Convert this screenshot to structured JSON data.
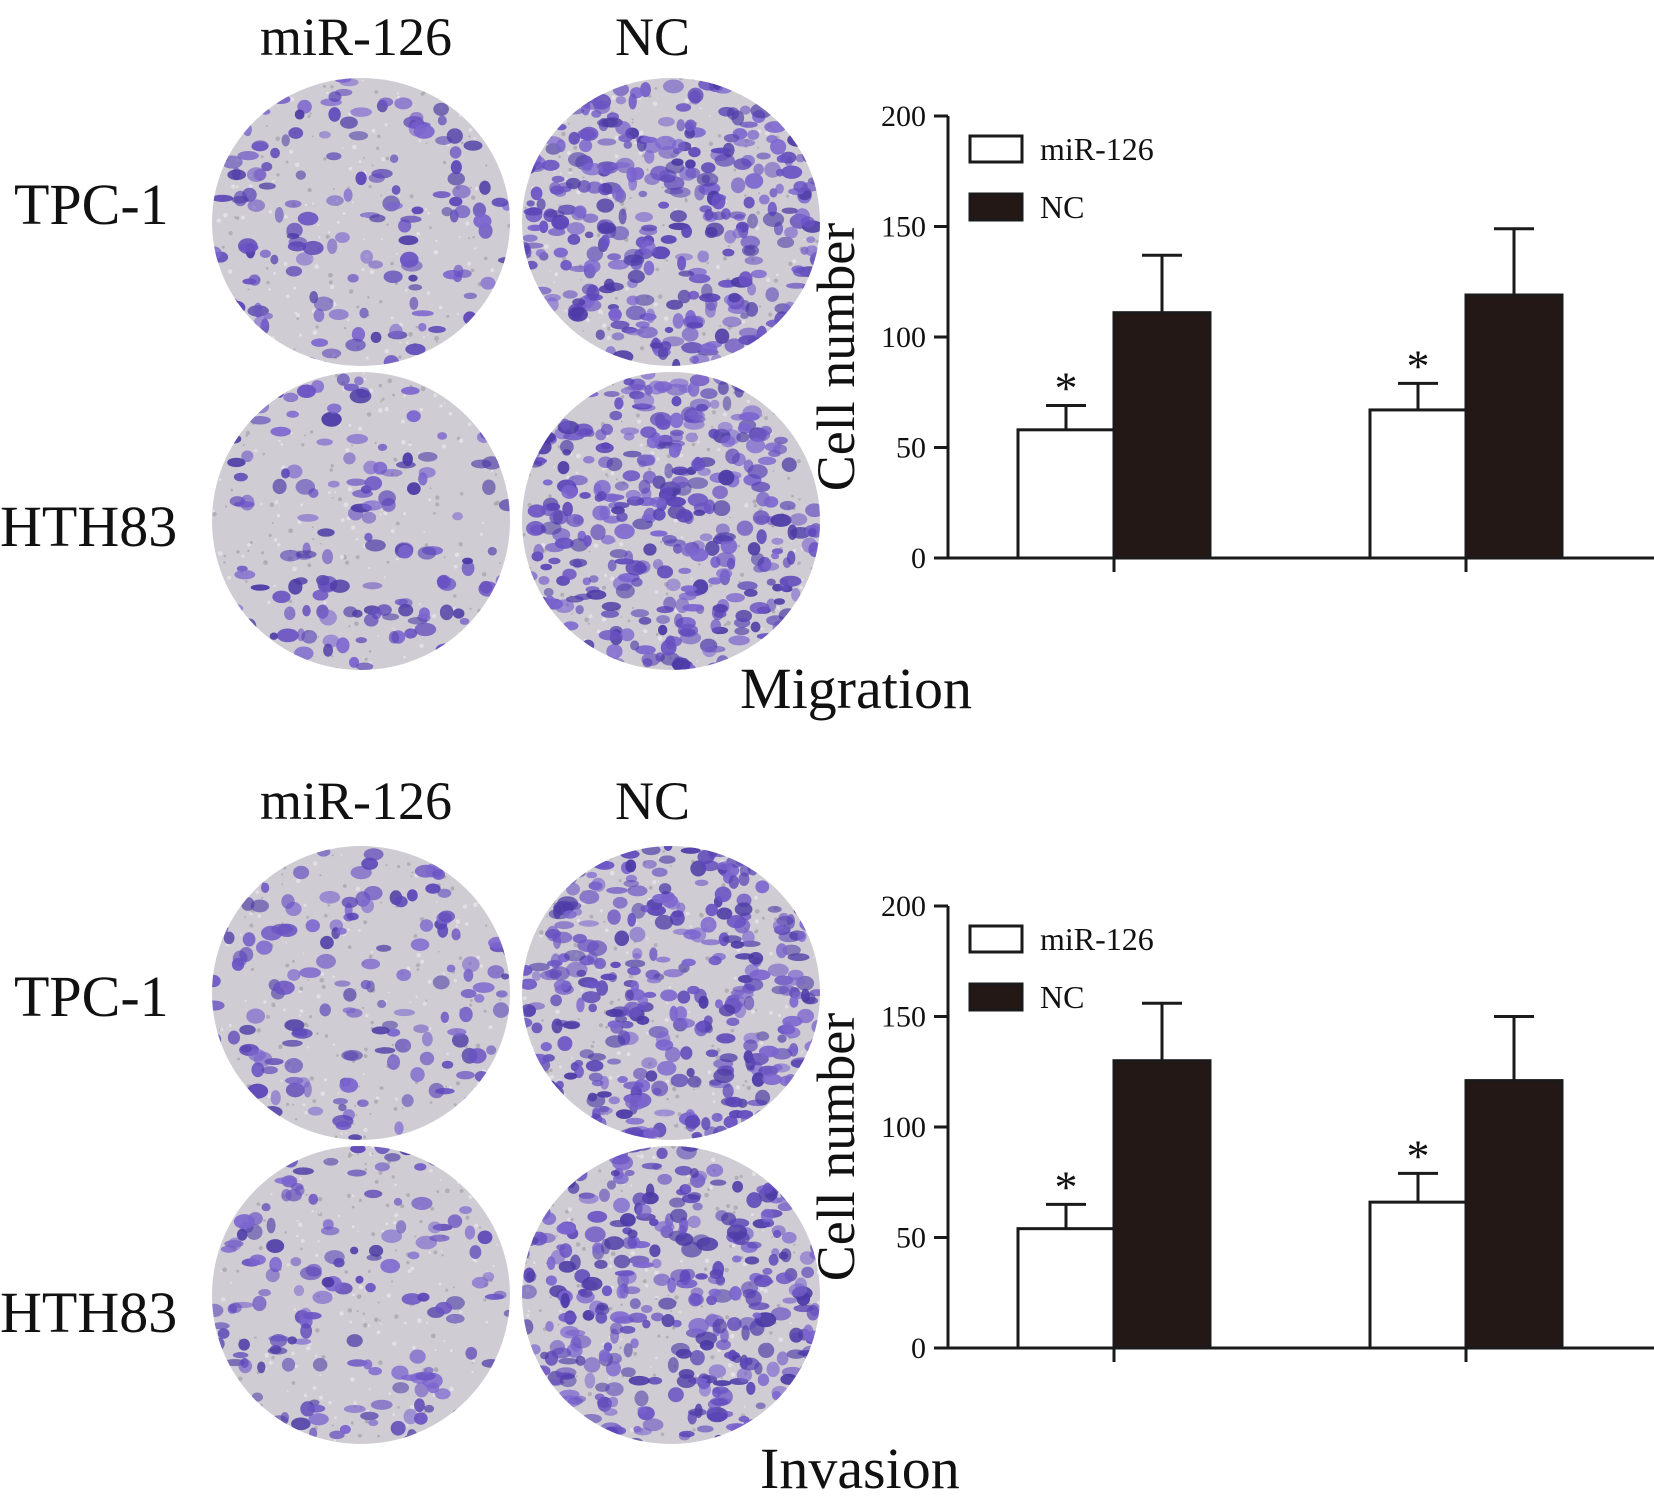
{
  "colors": {
    "miR-126": "#ffffff",
    "NC": "#231815",
    "stain": "#6a52c4",
    "well_background": "#cfcdd3",
    "axis": "#1a1a1a"
  },
  "panels": [
    {
      "caption": "Migration",
      "column_headers": [
        "miR-126",
        "NC"
      ],
      "row_labels": [
        "TPC-1",
        "HTH83"
      ],
      "micrographs": [
        {
          "row": "TPC-1",
          "column": "miR-126",
          "stain_density": "low"
        },
        {
          "row": "TPC-1",
          "column": "NC",
          "stain_density": "high"
        },
        {
          "row": "HTH83",
          "column": "miR-126",
          "stain_density": "low"
        },
        {
          "row": "HTH83",
          "column": "NC",
          "stain_density": "high"
        }
      ]
    },
    {
      "caption": "Invasion",
      "column_headers": [
        "miR-126",
        "NC"
      ],
      "row_labels": [
        "TPC-1",
        "HTH83"
      ],
      "micrographs": [
        {
          "row": "TPC-1",
          "column": "miR-126",
          "stain_density": "low"
        },
        {
          "row": "TPC-1",
          "column": "NC",
          "stain_density": "high"
        },
        {
          "row": "HTH83",
          "column": "miR-126",
          "stain_density": "low"
        },
        {
          "row": "HTH83",
          "column": "NC",
          "stain_density": "high"
        }
      ]
    }
  ],
  "chart_data": [
    {
      "type": "bar",
      "title": "",
      "xlabel": "",
      "ylabel": "Cell number",
      "ylim": [
        0,
        200
      ],
      "yticks": [
        0,
        50,
        100,
        150,
        200
      ],
      "categories": [
        "",
        ""
      ],
      "legend_position": "top-left",
      "series": [
        {
          "name": "miR-126",
          "values": [
            58,
            67
          ],
          "errors": [
            11,
            12
          ],
          "significant": [
            true,
            true
          ]
        },
        {
          "name": "NC",
          "values": [
            111,
            119
          ],
          "errors": [
            26,
            30
          ],
          "significant": [
            false,
            false
          ]
        }
      ],
      "significance_marker": "*",
      "grid": false
    },
    {
      "type": "bar",
      "title": "",
      "xlabel": "",
      "ylabel": "Cell number",
      "ylim": [
        0,
        200
      ],
      "yticks": [
        0,
        50,
        100,
        150,
        200
      ],
      "categories": [
        "",
        ""
      ],
      "legend_position": "top-left",
      "series": [
        {
          "name": "miR-126",
          "values": [
            54,
            66
          ],
          "errors": [
            11,
            13
          ],
          "significant": [
            true,
            true
          ]
        },
        {
          "name": "NC",
          "values": [
            130,
            121
          ],
          "errors": [
            26,
            29
          ],
          "significant": [
            false,
            false
          ]
        }
      ],
      "significance_marker": "*",
      "grid": false
    }
  ]
}
